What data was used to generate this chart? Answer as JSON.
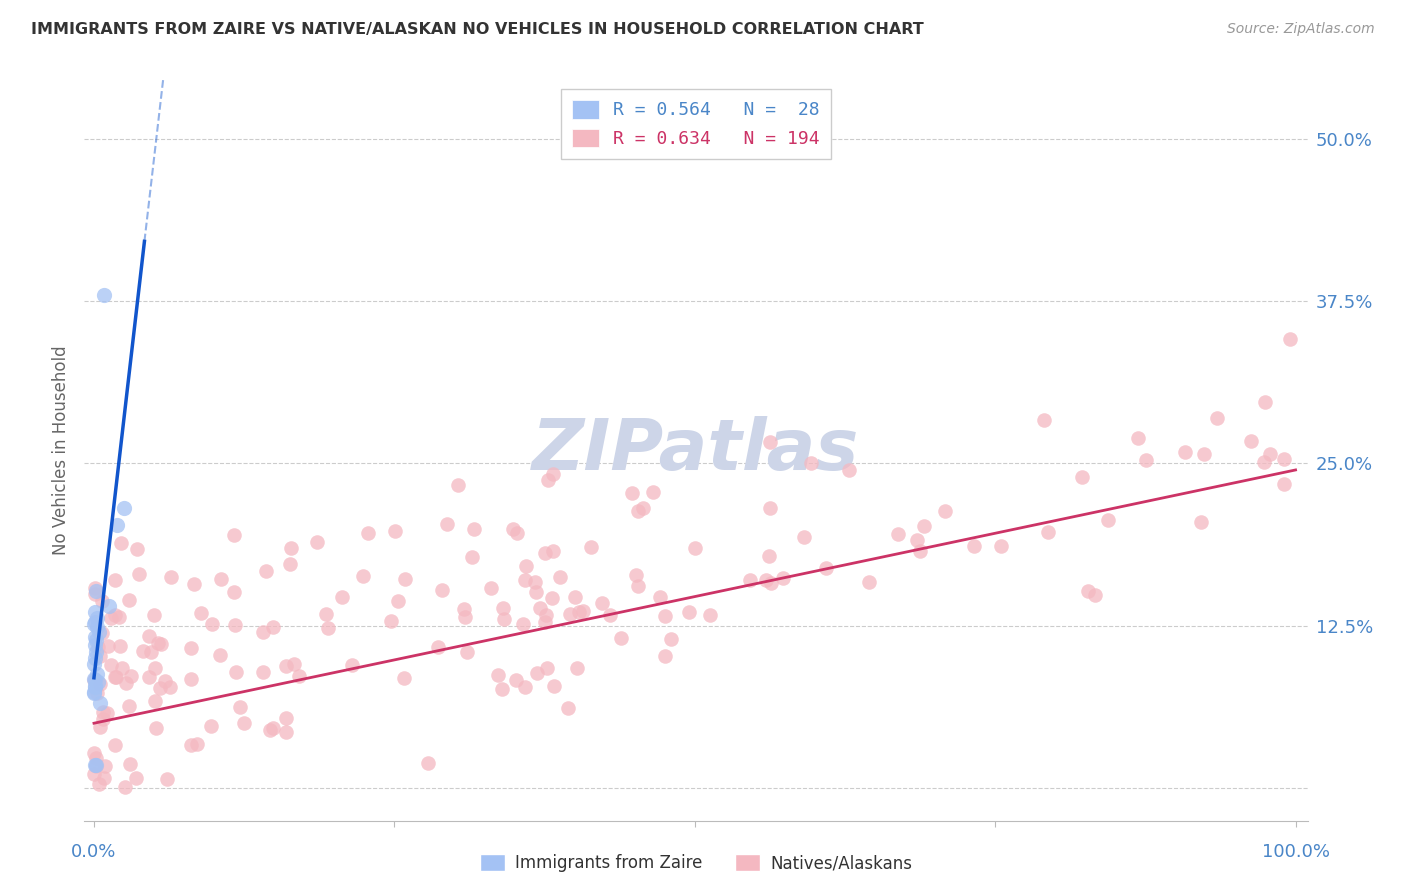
{
  "title": "IMMIGRANTS FROM ZAIRE VS NATIVE/ALASKAN NO VEHICLES IN HOUSEHOLD CORRELATION CHART",
  "source": "Source: ZipAtlas.com",
  "ylabel": "No Vehicles in Household",
  "legend_blue_R": "0.564",
  "legend_blue_N": "28",
  "legend_pink_R": "0.634",
  "legend_pink_N": "194",
  "legend_label_blue": "Immigrants from Zaire",
  "legend_label_pink": "Natives/Alaskans",
  "blue_color": "#a4c2f4",
  "pink_color": "#f4b8c1",
  "blue_line_color": "#1155cc",
  "pink_line_color": "#cc3366",
  "background_color": "#ffffff",
  "grid_color": "#cccccc",
  "tick_color": "#4a86c8",
  "title_color": "#333333",
  "source_color": "#999999",
  "watermark_color": "#cdd5e8",
  "seed": 42
}
